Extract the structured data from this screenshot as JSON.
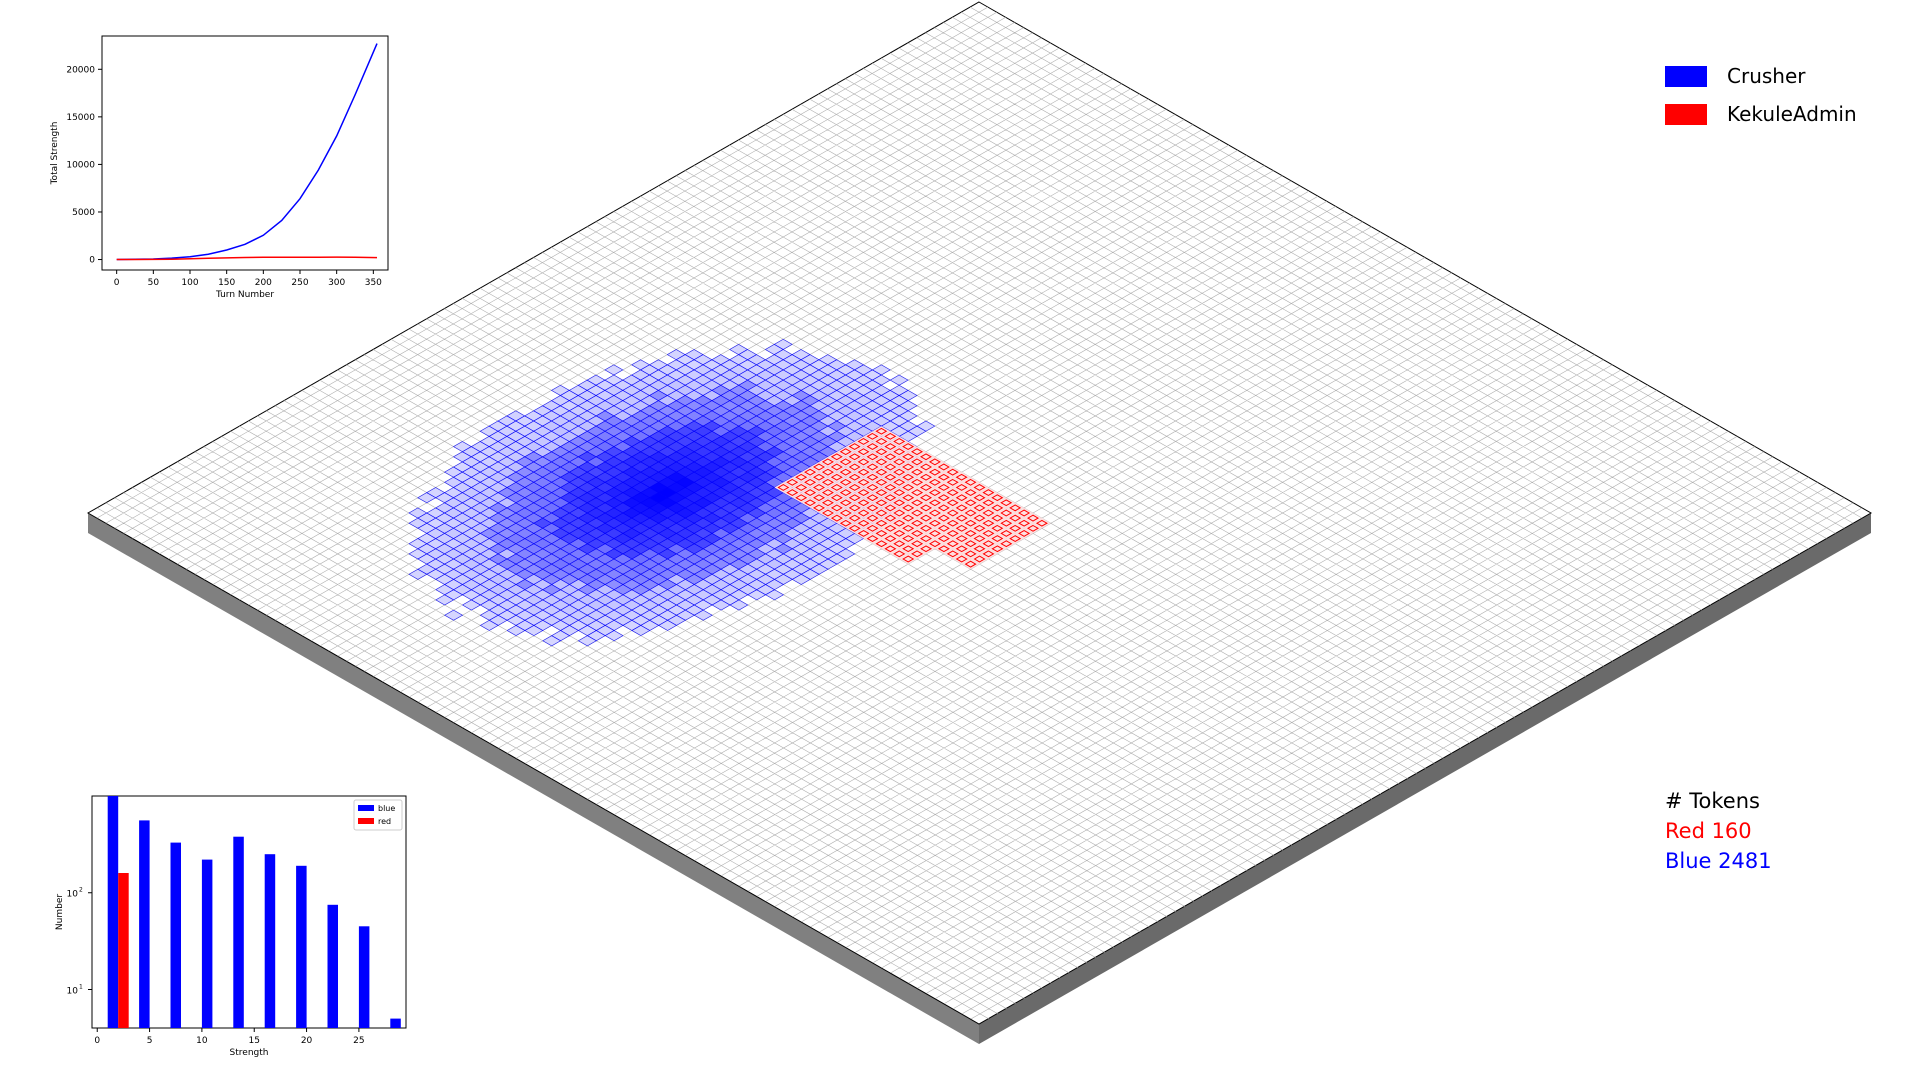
{
  "legend": {
    "players": [
      {
        "name": "Crusher",
        "color": "#0000ff"
      },
      {
        "name": "KekuleAdmin",
        "color": "#ff0000"
      }
    ]
  },
  "tokens": {
    "title": "# Tokens",
    "red_label": "Red 160",
    "blue_label": "Blue 2481",
    "red_color": "#ff0000",
    "blue_color": "#0000ff"
  },
  "board": {
    "grid_size": 100,
    "board_color": "#ffffff",
    "grid_color": "#b0b0b0",
    "side_color": "#808080",
    "blue_territory": "large blob in the west-centre of the board",
    "red_territory": "small rectangular block north-east of the blue blob"
  },
  "chart_data": [
    {
      "type": "line",
      "title": "",
      "xlabel": "Turn Number",
      "ylabel": "Total Strength",
      "xlim": [
        -20,
        370
      ],
      "ylim": [
        -1100,
        23500
      ],
      "xticks": [
        "0",
        "50",
        "100",
        "150",
        "200",
        "250",
        "300",
        "350"
      ],
      "yticks": [
        "0",
        "5000",
        "10000",
        "15000",
        "20000"
      ],
      "x": [
        0,
        25,
        50,
        75,
        100,
        125,
        150,
        175,
        200,
        225,
        250,
        275,
        300,
        325,
        355
      ],
      "series": [
        {
          "name": "blue",
          "color": "#0000ff",
          "values": [
            0,
            20,
            60,
            150,
            300,
            560,
            1000,
            1600,
            2550,
            4100,
            6400,
            9400,
            13000,
            17300,
            22700
          ]
        },
        {
          "name": "red",
          "color": "#ff0000",
          "values": [
            0,
            5,
            15,
            40,
            80,
            130,
            170,
            210,
            240,
            250,
            230,
            240,
            260,
            230,
            200
          ]
        }
      ],
      "grid": false
    },
    {
      "type": "bar",
      "title": "",
      "xlabel": "Strength",
      "ylabel": "Number",
      "yscale": "log",
      "ylim": [
        4,
        1000
      ],
      "xlim": [
        -0.5,
        29.5
      ],
      "xticks": [
        "0",
        "5",
        "10",
        "15",
        "20",
        "25"
      ],
      "ytick_labels": [
        {
          "mantissa": "10",
          "exp": "1"
        },
        {
          "mantissa": "10",
          "exp": "2"
        }
      ],
      "legend": [
        "blue",
        "red"
      ],
      "legend_position": "top-right",
      "series": [
        {
          "name": "blue",
          "color": "#0000ff",
          "x": [
            1.5,
            4.5,
            7.5,
            10.5,
            13.5,
            16.5,
            19.5,
            22.5,
            25.5,
            28.5
          ],
          "values": [
            1000,
            560,
            330,
            220,
            380,
            250,
            190,
            75,
            45,
            5
          ]
        },
        {
          "name": "red",
          "color": "#ff0000",
          "x": [
            2.5
          ],
          "values": [
            160
          ]
        }
      ],
      "grid": false
    }
  ]
}
